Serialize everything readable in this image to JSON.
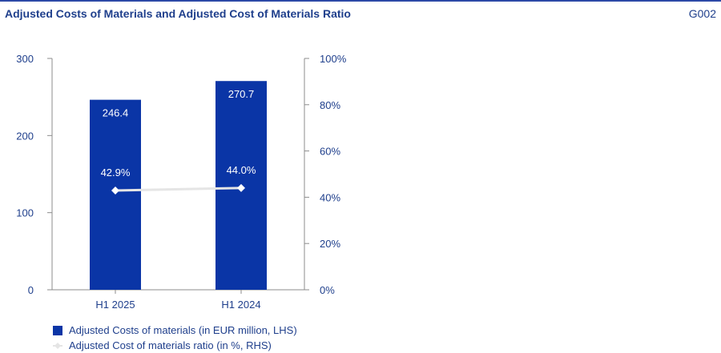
{
  "header": {
    "title": "Adjusted Costs of Materials and Adjusted Cost of Materials Ratio",
    "code": "G002"
  },
  "colors": {
    "bar": "#0a35a6",
    "line": "#e5e5e5",
    "marker": "#ffffff",
    "axis": "#8c8c8c",
    "text": "#1f3f8c"
  },
  "chart_data": {
    "type": "bar",
    "categories": [
      "H1 2025",
      "H1 2024"
    ],
    "series": [
      {
        "name": "Adjusted Costs of materials (in EUR million, LHS)",
        "type": "bar",
        "axis": "left",
        "values": [
          246.4,
          270.7
        ],
        "labels": [
          "246.4",
          "270.7"
        ]
      },
      {
        "name": "Adjusted Cost of materials ratio (in %, RHS)",
        "type": "line",
        "axis": "right",
        "values": [
          42.9,
          44.0
        ],
        "labels": [
          "42.9%",
          "44.0%"
        ]
      }
    ],
    "ylim_left": [
      0,
      300
    ],
    "yticks_left": [
      "0",
      "100",
      "200",
      "300"
    ],
    "ylim_right": [
      0,
      100
    ],
    "yticks_right": [
      "0%",
      "20%",
      "40%",
      "60%",
      "80%",
      "100%"
    ],
    "grid": false,
    "legend_position": "bottom-left"
  }
}
